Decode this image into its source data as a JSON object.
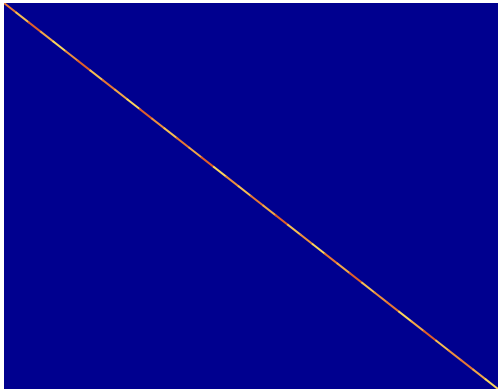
{
  "chart_data": {
    "type": "heatmap",
    "title": "",
    "xlabel": "",
    "ylabel": "",
    "pattern": "diagonal",
    "cells": [
      {
        "x": 0,
        "y": 0,
        "value": 0.75
      },
      {
        "x": 1,
        "y": 1,
        "value": 0.9
      },
      {
        "x": 2,
        "y": 2,
        "value": 0.7
      },
      {
        "x": 3,
        "y": 3,
        "value": 0.85
      },
      {
        "x": 4,
        "y": 4,
        "value": 0.95
      },
      {
        "x": 5,
        "y": 5,
        "value": 0.8
      },
      {
        "x": 6,
        "y": 6,
        "value": 0.7
      },
      {
        "x": 7,
        "y": 7,
        "value": 0.9
      },
      {
        "x": 8,
        "y": 8,
        "value": 0.75
      },
      {
        "x": 9,
        "y": 9,
        "value": 0.85
      },
      {
        "x": 10,
        "y": 10,
        "value": 0.95
      },
      {
        "x": 11,
        "y": 11,
        "value": 0.7
      },
      {
        "x": 12,
        "y": 12,
        "value": 0.8
      },
      {
        "x": 13,
        "y": 13,
        "value": 0.9
      },
      {
        "x": 14,
        "y": 14,
        "value": 0.75
      },
      {
        "x": 15,
        "y": 15,
        "value": 0.85
      },
      {
        "x": 16,
        "y": 16,
        "value": 0.7
      },
      {
        "x": 17,
        "y": 17,
        "value": 0.95
      },
      {
        "x": 18,
        "y": 18,
        "value": 0.8
      },
      {
        "x": 19,
        "y": 19,
        "value": 0.9
      },
      {
        "x": 20,
        "y": 20,
        "value": 0.75
      },
      {
        "x": 21,
        "y": 21,
        "value": 0.85
      },
      {
        "x": 22,
        "y": 22,
        "value": 0.7
      },
      {
        "x": 23,
        "y": 23,
        "value": 0.9
      },
      {
        "x": 24,
        "y": 24,
        "value": 0.8
      },
      {
        "x": 25,
        "y": 25,
        "value": 0.95
      },
      {
        "x": 26,
        "y": 26,
        "value": 0.75
      },
      {
        "x": 27,
        "y": 27,
        "value": 0.85
      },
      {
        "x": 28,
        "y": 28,
        "value": 0.7
      },
      {
        "x": 29,
        "y": 29,
        "value": 0.9
      },
      {
        "x": 30,
        "y": 30,
        "value": 0.8
      },
      {
        "x": 31,
        "y": 31,
        "value": 0.75
      },
      {
        "x": 32,
        "y": 32,
        "value": 0.95
      },
      {
        "x": 33,
        "y": 33,
        "value": 0.85
      },
      {
        "x": 34,
        "y": 34,
        "value": 0.7
      },
      {
        "x": 35,
        "y": 35,
        "value": 0.9
      },
      {
        "x": 36,
        "y": 36,
        "value": 0.8
      },
      {
        "x": 37,
        "y": 37,
        "value": 0.75
      },
      {
        "x": 38,
        "y": 38,
        "value": 0.85
      },
      {
        "x": 39,
        "y": 39,
        "value": 0.95
      }
    ],
    "n_rows": 40,
    "n_cols": 40,
    "colorscale": {
      "low": "#00008f",
      "mid": "#cc0000",
      "high": "#ffee66"
    },
    "grid": false
  }
}
